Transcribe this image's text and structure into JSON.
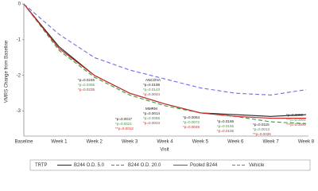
{
  "chart_data": {
    "type": "line",
    "xlabel": "Visit",
    "ylabel": "VMRS Change from Baseline",
    "categories": [
      "Baseline",
      "Week 1",
      "Week 2",
      "Week 3",
      "Week 4",
      "Week 5",
      "Week 6",
      "Week 7",
      "Week 8"
    ],
    "ylim": [
      -3.7,
      0
    ],
    "yticks": [
      0,
      -1,
      -2,
      -3
    ],
    "legend_title": "TRTP",
    "series": [
      {
        "name": "B244 O.D. 5.0",
        "color": "#222222",
        "dash": false,
        "values": [
          0,
          -1.2,
          -2.0,
          -2.5,
          -2.8,
          -3.05,
          -3.1,
          -3.15,
          -3.1
        ]
      },
      {
        "name": "B244 O.D. 20.0",
        "color": "#3a9a3a",
        "dash": true,
        "values": [
          0,
          -1.3,
          -2.05,
          -2.55,
          -2.85,
          -3.05,
          -3.15,
          -3.3,
          -3.35
        ]
      },
      {
        "name": "Pooled B244",
        "color": "#d42a2a",
        "dash": false,
        "values": [
          0,
          -1.25,
          -2.0,
          -2.5,
          -2.8,
          -3.05,
          -3.15,
          -3.2,
          -3.2
        ]
      },
      {
        "name": "Vehicle",
        "color": "#6f6fe0",
        "dash": true,
        "values": [
          0,
          -0.85,
          -1.5,
          -1.85,
          -2.1,
          -2.35,
          -2.5,
          -2.55,
          -2.4
        ]
      }
    ],
    "annotations": [
      {
        "texts": [
          "*p=0.0246",
          "*p=0.0366",
          "*p=0.0235"
        ]
      },
      {
        "texts": [
          "*p=0.0017",
          "*p=0.0021",
          "**p=0.0012"
        ]
      },
      {
        "header": "ANCOVA",
        "texts": [
          "*p=0.0198",
          "*p=0.0143",
          "*p=0.0044"
        ]
      },
      {
        "header": "MMRM",
        "texts": [
          "*p=0.0014",
          "*p=0.0086",
          "*p=0.0023"
        ]
      },
      {
        "texts": [
          "*p=0.0064",
          "*p=0.0072",
          "*p=0.0046"
        ]
      },
      {
        "texts": [
          "*p=0.0186",
          "*p=0.0155",
          "*p=0.0105"
        ]
      },
      {
        "texts": [
          "*p=0.0115",
          "*p=0.0013",
          "**p=0.0026"
        ]
      },
      {
        "texts": [
          "*p=0.0050",
          "***p=0.0001",
          "***p=0.0005"
        ]
      }
    ]
  }
}
